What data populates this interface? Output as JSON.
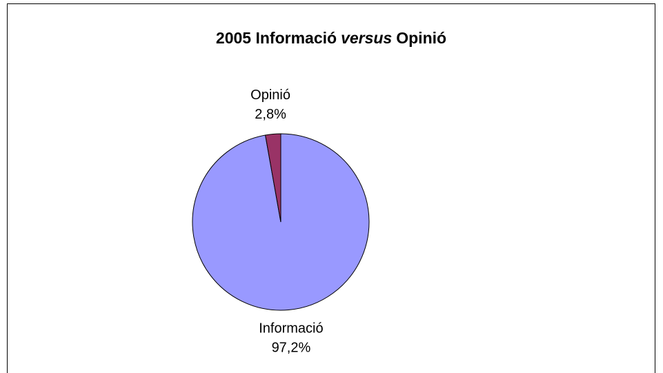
{
  "chart_data": {
    "type": "pie",
    "title": [
      "2005 Informació",
      "versus",
      "Opinió"
    ],
    "title_italic": [
      false,
      true,
      false
    ],
    "categories": [
      "Informació",
      "Opinió"
    ],
    "values": [
      97.2,
      2.8
    ],
    "value_labels": [
      "97,2%",
      "2,8%"
    ],
    "colors": [
      "#9999ff",
      "#993366"
    ]
  }
}
